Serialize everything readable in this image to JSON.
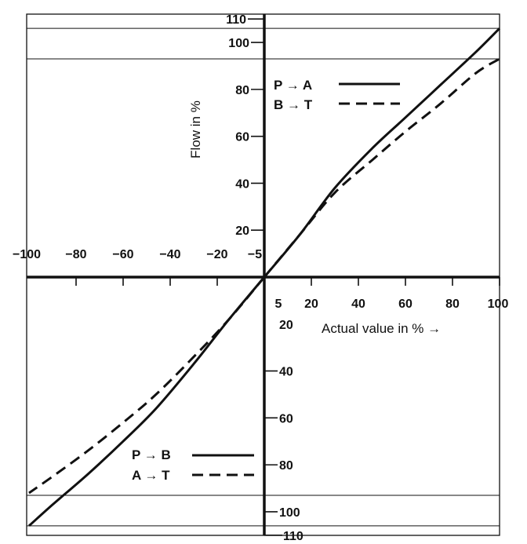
{
  "chart_data": {
    "type": "line",
    "xlabel": "Actual value in % →",
    "ylabel": "Flow in %",
    "xlim": [
      -100,
      100
    ],
    "ylim": [
      -110,
      110
    ],
    "grid": false,
    "reference_lines_y": [
      106,
      93,
      -93,
      -106
    ],
    "x_ticks_negative": [
      "−100",
      "−80",
      "−60",
      "−40",
      "−20",
      "−5"
    ],
    "x_ticks_positive": [
      "5",
      "20",
      "40",
      "60",
      "80",
      "100"
    ],
    "y_ticks_positive": [
      "20",
      "40",
      "60",
      "80",
      "100",
      "110"
    ],
    "y_ticks_negative": [
      "20",
      "40",
      "60",
      "80",
      "100",
      "110"
    ],
    "series": [
      {
        "name": "P → A",
        "style": "solid",
        "x": [
          0,
          15,
          30,
          46,
          60,
          75,
          90,
          100
        ],
        "y": [
          0,
          18,
          38,
          55,
          68,
          82,
          96,
          106
        ]
      },
      {
        "name": "B → T",
        "style": "dashed",
        "x": [
          0,
          15,
          30,
          46,
          60,
          75,
          90,
          100
        ],
        "y": [
          0,
          18,
          36,
          50,
          62,
          74,
          87,
          93
        ]
      },
      {
        "name": "P → B",
        "style": "solid",
        "x": [
          0,
          -15,
          -30,
          -46,
          -60,
          -75,
          -90,
          -100
        ],
        "y": [
          0,
          -18,
          -37,
          -56,
          -70,
          -84,
          -97,
          -106
        ]
      },
      {
        "name": "A → T",
        "style": "dashed",
        "x": [
          0,
          -15,
          -30,
          -46,
          -60,
          -75,
          -90,
          -100
        ],
        "y": [
          0,
          -18,
          -34,
          -50,
          -62,
          -74,
          -85,
          -92
        ]
      }
    ],
    "legend": [
      {
        "label": "P → A",
        "style": "solid",
        "placement": "top"
      },
      {
        "label": "B → T",
        "style": "dashed",
        "placement": "top"
      },
      {
        "label": "P → B",
        "style": "solid",
        "placement": "bottom"
      },
      {
        "label": "A → T",
        "style": "dashed",
        "placement": "bottom"
      }
    ]
  }
}
